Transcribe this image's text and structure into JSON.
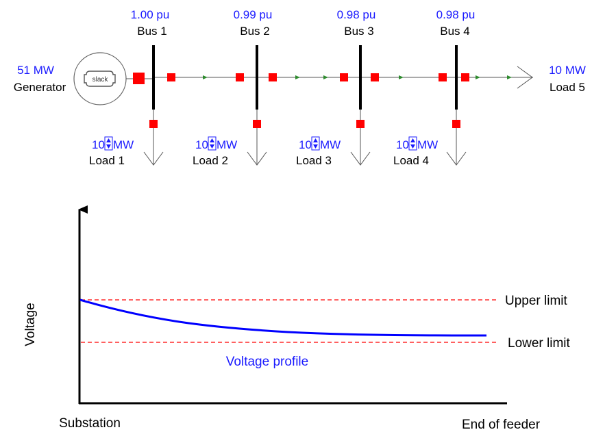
{
  "colors": {
    "value_text": "#1a1aff",
    "label_text": "#000000",
    "breaker": "#ff0000",
    "flow_arrow": "#2e8b2e",
    "limit_line": "#ff0000",
    "profile_line": "#0000ff",
    "axis": "#000000"
  },
  "generator": {
    "value": "51 MW",
    "label": "Generator",
    "symbol_label": "slack"
  },
  "buses": [
    {
      "voltage": "1.00 pu",
      "label": "Bus 1"
    },
    {
      "voltage": "0.99 pu",
      "label": "Bus 2"
    },
    {
      "voltage": "0.98 pu",
      "label": "Bus 3"
    },
    {
      "voltage": "0.98 pu",
      "label": "Bus 4"
    }
  ],
  "loads": [
    {
      "value": "10",
      "unit": "MW",
      "label": "Load 1"
    },
    {
      "value": "10",
      "unit": "MW",
      "label": "Load 2"
    },
    {
      "value": "10",
      "unit": "MW",
      "label": "Load 3"
    },
    {
      "value": "10",
      "unit": "MW",
      "label": "Load 4"
    }
  ],
  "end_load": {
    "value": "10 MW",
    "label": "Load 5"
  },
  "profile": {
    "ylabel": "Voltage",
    "x_start_label": "Substation",
    "x_end_label": "End of feeder",
    "upper_limit_label": "Upper limit",
    "lower_limit_label": "Lower limit",
    "curve_label": "Voltage profile"
  }
}
